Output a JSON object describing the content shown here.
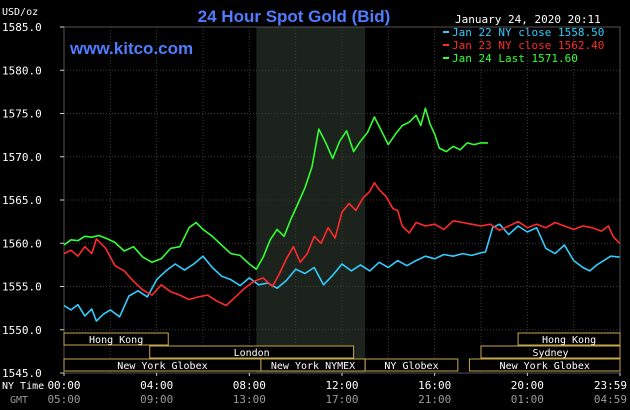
{
  "header": {
    "title": "24 Hour Spot Gold (Bid)",
    "datetime": "January 24, 2020 20:11",
    "website": "www.kitco.com",
    "title_color": "#4f7dff",
    "website_color": "#4f7dff"
  },
  "axis_row_labels": {
    "ny_time": "NY Time",
    "gmt": "GMT"
  },
  "sessions": [
    {
      "name": "Hong Kong",
      "row": 0,
      "start": 0,
      "end": 4.5
    },
    {
      "name": "London",
      "row": 1,
      "start": 3.7,
      "end": 12.5
    },
    {
      "name": "New York Globex",
      "row": 2,
      "start": 0,
      "end": 8.5
    },
    {
      "name": "New York NYMEX",
      "row": 2,
      "start": 8.5,
      "end": 13.0
    },
    {
      "name": "NY Globex",
      "row": 2,
      "start": 13.0,
      "end": 17.0
    },
    {
      "name": "Hong Kong",
      "row": 0,
      "start": 19.6,
      "end": 24.0
    },
    {
      "name": "Sydney",
      "row": 1,
      "start": 18.0,
      "end": 24.0
    },
    {
      "name": "New York Globex",
      "row": 2,
      "start": 17.5,
      "end": 24.0
    }
  ],
  "chart_data": {
    "type": "line",
    "title": "24 Hour Spot Gold (Bid)",
    "ylabel": "USD/oz",
    "ylim": [
      1545.0,
      1585.0
    ],
    "yticks": [
      "1585.0",
      "1580.0",
      "1575.0",
      "1570.0",
      "1565.0",
      "1560.0",
      "1555.0",
      "1550.0",
      "1545.0"
    ],
    "xlim": [
      0,
      24
    ],
    "xticks_ny": [
      "00:00",
      "04:00",
      "08:00",
      "12:00",
      "16:00",
      "20:00",
      "23:59"
    ],
    "xticks_gmt": [
      "05:00",
      "09:00",
      "13:00",
      "17:00",
      "21:00",
      "01:00",
      "04:59"
    ],
    "grid": true,
    "legend_position": "top-right",
    "highlight_range": [
      8.3,
      13.0
    ],
    "series": [
      {
        "name": "Jan 22 NY close 1558.50",
        "color": "#33ccff",
        "points": [
          [
            0,
            1552.8
          ],
          [
            0.3,
            1552.3
          ],
          [
            0.6,
            1552.9
          ],
          [
            0.9,
            1551.6
          ],
          [
            1.2,
            1552.4
          ],
          [
            1.4,
            1551.0
          ],
          [
            1.7,
            1551.8
          ],
          [
            2.0,
            1552.3
          ],
          [
            2.4,
            1551.5
          ],
          [
            2.8,
            1553.9
          ],
          [
            3.2,
            1554.5
          ],
          [
            3.6,
            1553.8
          ],
          [
            4.0,
            1555.8
          ],
          [
            4.4,
            1556.8
          ],
          [
            4.8,
            1557.6
          ],
          [
            5.2,
            1556.9
          ],
          [
            5.6,
            1557.6
          ],
          [
            6.0,
            1558.5
          ],
          [
            6.4,
            1557.2
          ],
          [
            6.8,
            1556.2
          ],
          [
            7.2,
            1555.8
          ],
          [
            7.6,
            1555.1
          ],
          [
            8.0,
            1556.0
          ],
          [
            8.4,
            1555.2
          ],
          [
            8.8,
            1555.4
          ],
          [
            9.2,
            1554.8
          ],
          [
            9.6,
            1555.7
          ],
          [
            10.0,
            1557.0
          ],
          [
            10.4,
            1556.5
          ],
          [
            10.8,
            1557.2
          ],
          [
            11.2,
            1555.2
          ],
          [
            11.6,
            1556.3
          ],
          [
            12.0,
            1557.6
          ],
          [
            12.4,
            1556.8
          ],
          [
            12.8,
            1557.5
          ],
          [
            13.2,
            1556.8
          ],
          [
            13.6,
            1557.8
          ],
          [
            14.0,
            1557.2
          ],
          [
            14.4,
            1558.0
          ],
          [
            14.8,
            1557.4
          ],
          [
            15.2,
            1558.0
          ],
          [
            15.6,
            1558.5
          ],
          [
            16.0,
            1558.2
          ],
          [
            16.4,
            1558.7
          ],
          [
            16.8,
            1558.5
          ],
          [
            17.2,
            1558.8
          ],
          [
            17.6,
            1558.6
          ],
          [
            18.0,
            1558.9
          ],
          [
            18.2,
            1559.0
          ],
          [
            18.5,
            1561.8
          ],
          [
            18.8,
            1562.2
          ],
          [
            19.2,
            1561.0
          ],
          [
            19.6,
            1562.0
          ],
          [
            20.0,
            1561.3
          ],
          [
            20.4,
            1561.8
          ],
          [
            20.8,
            1559.4
          ],
          [
            21.2,
            1558.8
          ],
          [
            21.6,
            1559.8
          ],
          [
            22.0,
            1558.0
          ],
          [
            22.4,
            1557.2
          ],
          [
            22.7,
            1556.8
          ],
          [
            23.0,
            1557.5
          ],
          [
            23.3,
            1558.0
          ],
          [
            23.6,
            1558.5
          ],
          [
            23.98,
            1558.4
          ]
        ]
      },
      {
        "name": "Jan 23 NY close 1562.40",
        "color": "#ff2a2a",
        "points": [
          [
            0,
            1558.8
          ],
          [
            0.3,
            1559.2
          ],
          [
            0.6,
            1558.5
          ],
          [
            0.9,
            1559.6
          ],
          [
            1.2,
            1558.8
          ],
          [
            1.4,
            1560.5
          ],
          [
            1.8,
            1559.4
          ],
          [
            2.2,
            1557.4
          ],
          [
            2.6,
            1556.8
          ],
          [
            3.0,
            1555.6
          ],
          [
            3.4,
            1554.6
          ],
          [
            3.8,
            1554.0
          ],
          [
            4.2,
            1555.2
          ],
          [
            4.6,
            1554.4
          ],
          [
            5.0,
            1554.0
          ],
          [
            5.4,
            1553.5
          ],
          [
            5.8,
            1553.8
          ],
          [
            6.2,
            1554.0
          ],
          [
            6.6,
            1553.3
          ],
          [
            7.0,
            1552.8
          ],
          [
            7.4,
            1553.8
          ],
          [
            7.8,
            1554.8
          ],
          [
            8.2,
            1555.6
          ],
          [
            8.6,
            1556.0
          ],
          [
            9.0,
            1555.0
          ],
          [
            9.3,
            1556.5
          ],
          [
            9.6,
            1558.2
          ],
          [
            9.9,
            1559.6
          ],
          [
            10.2,
            1557.8
          ],
          [
            10.5,
            1558.8
          ],
          [
            10.8,
            1560.8
          ],
          [
            11.1,
            1560.0
          ],
          [
            11.4,
            1561.8
          ],
          [
            11.7,
            1560.6
          ],
          [
            12.0,
            1563.6
          ],
          [
            12.3,
            1564.6
          ],
          [
            12.6,
            1563.8
          ],
          [
            12.9,
            1565.2
          ],
          [
            13.2,
            1566.0
          ],
          [
            13.4,
            1567.0
          ],
          [
            13.6,
            1566.2
          ],
          [
            13.9,
            1565.4
          ],
          [
            14.2,
            1564.0
          ],
          [
            14.4,
            1563.8
          ],
          [
            14.6,
            1562.0
          ],
          [
            14.9,
            1561.2
          ],
          [
            15.2,
            1562.4
          ],
          [
            15.6,
            1562.0
          ],
          [
            16.0,
            1562.2
          ],
          [
            16.4,
            1561.6
          ],
          [
            16.8,
            1562.6
          ],
          [
            17.2,
            1562.4
          ],
          [
            17.6,
            1562.2
          ],
          [
            18.0,
            1562.0
          ],
          [
            18.4,
            1562.2
          ],
          [
            18.8,
            1561.5
          ],
          [
            19.2,
            1562.0
          ],
          [
            19.6,
            1562.5
          ],
          [
            20.0,
            1561.8
          ],
          [
            20.4,
            1562.2
          ],
          [
            20.8,
            1561.8
          ],
          [
            21.2,
            1562.4
          ],
          [
            21.6,
            1562.0
          ],
          [
            22.0,
            1561.6
          ],
          [
            22.4,
            1562.0
          ],
          [
            22.8,
            1561.8
          ],
          [
            23.2,
            1561.4
          ],
          [
            23.5,
            1562.0
          ],
          [
            23.7,
            1560.8
          ],
          [
            23.98,
            1560.0
          ]
        ]
      },
      {
        "name": "Jan 24 Last 1571.60",
        "color": "#33ff33",
        "points": [
          [
            0,
            1559.8
          ],
          [
            0.3,
            1560.4
          ],
          [
            0.6,
            1560.3
          ],
          [
            0.9,
            1560.8
          ],
          [
            1.2,
            1560.7
          ],
          [
            1.5,
            1560.9
          ],
          [
            1.8,
            1560.6
          ],
          [
            2.2,
            1560.1
          ],
          [
            2.6,
            1559.1
          ],
          [
            3.0,
            1559.6
          ],
          [
            3.4,
            1558.4
          ],
          [
            3.8,
            1557.8
          ],
          [
            4.2,
            1558.2
          ],
          [
            4.6,
            1559.4
          ],
          [
            5.0,
            1559.6
          ],
          [
            5.4,
            1561.8
          ],
          [
            5.7,
            1562.4
          ],
          [
            6.0,
            1561.6
          ],
          [
            6.4,
            1560.8
          ],
          [
            6.8,
            1559.8
          ],
          [
            7.2,
            1558.8
          ],
          [
            7.6,
            1558.6
          ],
          [
            8.0,
            1557.6
          ],
          [
            8.3,
            1557.0
          ],
          [
            8.6,
            1558.4
          ],
          [
            8.9,
            1560.4
          ],
          [
            9.2,
            1561.6
          ],
          [
            9.5,
            1560.8
          ],
          [
            9.8,
            1562.8
          ],
          [
            10.1,
            1564.6
          ],
          [
            10.4,
            1566.4
          ],
          [
            10.7,
            1568.8
          ],
          [
            11.0,
            1573.2
          ],
          [
            11.3,
            1571.6
          ],
          [
            11.6,
            1569.8
          ],
          [
            11.9,
            1571.8
          ],
          [
            12.2,
            1573.0
          ],
          [
            12.5,
            1570.6
          ],
          [
            12.8,
            1571.8
          ],
          [
            13.1,
            1572.8
          ],
          [
            13.4,
            1574.6
          ],
          [
            13.7,
            1573.0
          ],
          [
            14.0,
            1571.4
          ],
          [
            14.3,
            1572.6
          ],
          [
            14.6,
            1573.6
          ],
          [
            14.9,
            1574.0
          ],
          [
            15.2,
            1574.8
          ],
          [
            15.4,
            1573.6
          ],
          [
            15.6,
            1575.6
          ],
          [
            15.8,
            1573.8
          ],
          [
            16.0,
            1572.6
          ],
          [
            16.2,
            1571.0
          ],
          [
            16.5,
            1570.6
          ],
          [
            16.8,
            1571.2
          ],
          [
            17.1,
            1570.8
          ],
          [
            17.4,
            1571.6
          ],
          [
            17.7,
            1571.4
          ],
          [
            18.0,
            1571.6
          ],
          [
            18.3,
            1571.6
          ]
        ]
      }
    ]
  }
}
